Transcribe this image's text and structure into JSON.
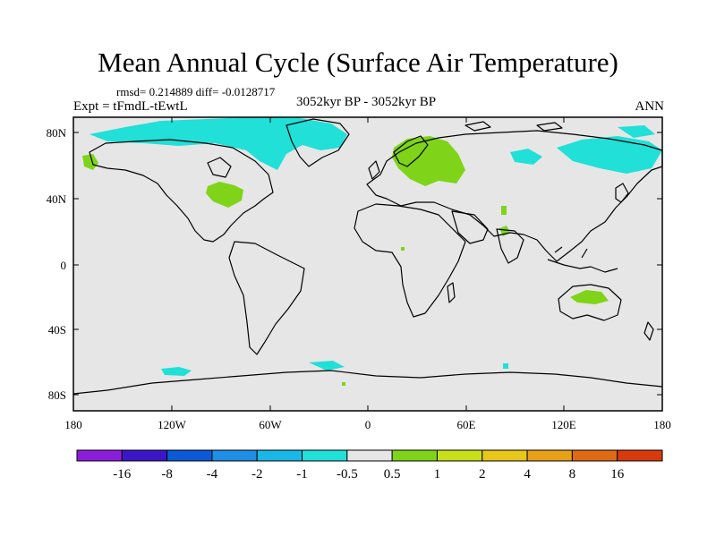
{
  "title": "Mean Annual Cycle (Surface Air Temperature)",
  "stats": "rmsd= 0.214889 diff= -0.0128717",
  "experiment": "Expt = tFmdL-tEwtL",
  "period": "3052kyr BP - 3052kyr BP",
  "season": "ANN",
  "lat_ticks": [
    "80N",
    "40N",
    "0",
    "40S",
    "80S"
  ],
  "lon_ticks": [
    "180",
    "120W",
    "60W",
    "0",
    "60E",
    "120E",
    "180"
  ],
  "colorbar": {
    "colors": [
      "#8d1ddc",
      "#3a16c8",
      "#0a5ad8",
      "#1e8ee6",
      "#1ab8e8",
      "#20e0d8",
      "#e6e6e6",
      "#7fd419",
      "#c8e01a",
      "#e8c61a",
      "#e8a019",
      "#e06a14",
      "#d83a0e"
    ],
    "labels": [
      "-16",
      "-8",
      "-4",
      "-2",
      "-1",
      "-0.5",
      "0.5",
      "1",
      "2",
      "4",
      "8",
      "16"
    ]
  },
  "legend_colors": {
    "neutral": "#e6e6e6",
    "cool": "#20e0d8",
    "warm": "#7fd419"
  }
}
